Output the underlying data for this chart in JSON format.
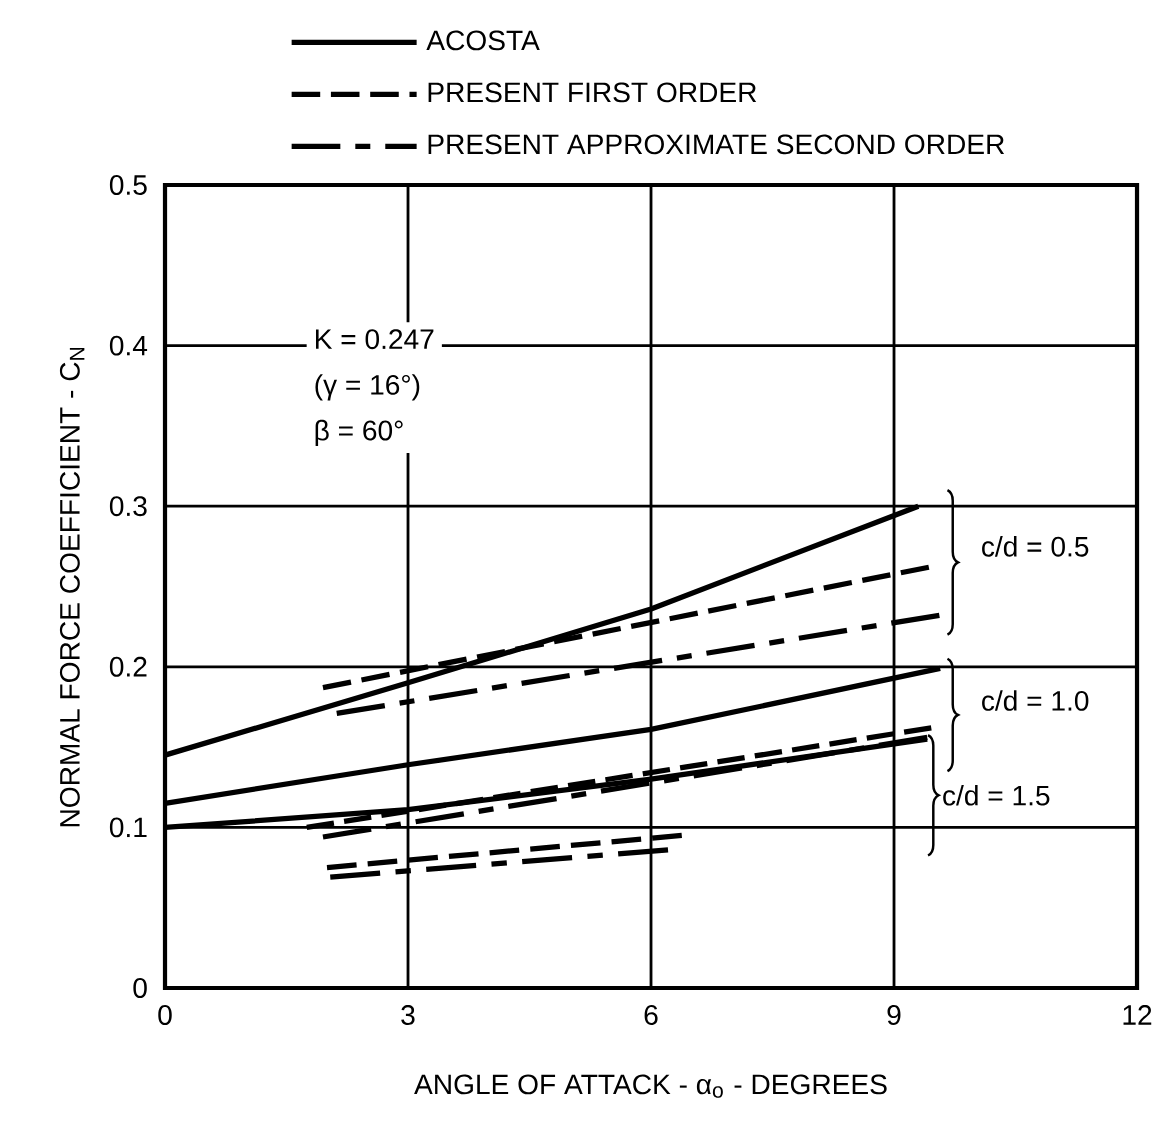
{
  "chart_data": {
    "type": "line",
    "xlabel": "ANGLE OF ATTACK - α$_{o}$ - DEGREES",
    "ylabel": "NORMAL FORCE COEFFICIENT - C$_{N}$",
    "xlim": [
      0,
      12
    ],
    "ylim": [
      0,
      0.5
    ],
    "xticks": [
      0,
      3,
      6,
      9,
      12
    ],
    "yticks": [
      0,
      0.1,
      0.2,
      0.3,
      0.4,
      0.5
    ],
    "grid": true,
    "legend": "top",
    "series": [
      {
        "name": "ACOSTA",
        "color": "#000000",
        "line_style": "solid",
        "x": [
          0,
          3,
          6,
          9.3
        ],
        "values": [
          0.145,
          0.19,
          0.236,
          0.3
        ]
      },
      {
        "name": "PRESENT FIRST ORDER",
        "color": "#000000",
        "line_style": "dashed",
        "x": [
          1.95,
          9.43
        ],
        "values": [
          0.187,
          0.262
        ]
      },
      {
        "name": "PRESENT APPROXIMATE SECOND ORDER",
        "color": "#000000",
        "line_style": "dashdot",
        "x": [
          2.12,
          9.56
        ],
        "values": [
          0.171,
          0.232
        ]
      },
      {
        "color": "#000000",
        "line_style": "solid",
        "x": [
          0,
          3,
          6,
          9.57
        ],
        "values": [
          0.115,
          0.139,
          0.161,
          0.199
        ]
      },
      {
        "color": "#000000",
        "line_style": "dashed",
        "x": [
          1.75,
          9.46
        ],
        "values": [
          0.1,
          0.162
        ]
      },
      {
        "color": "#000000",
        "line_style": "dashdot",
        "x": [
          1.95,
          9.41
        ],
        "values": [
          0.094,
          0.156
        ]
      },
      {
        "color": "#000000",
        "line_style": "solid",
        "x": [
          0,
          3,
          6,
          9.41
        ],
        "values": [
          0.1,
          0.111,
          0.13,
          0.155
        ]
      },
      {
        "color": "#000000",
        "line_style": "dashed",
        "x": [
          2.0,
          6.38
        ],
        "values": [
          0.075,
          0.095
        ]
      },
      {
        "color": "#000000",
        "line_style": "dashdot",
        "x": [
          2.04,
          6.21
        ],
        "values": [
          0.069,
          0.086
        ]
      }
    ],
    "annotations": [
      "K = 0.247",
      "(γ = 16°)",
      "β = 60°",
      "c/d = 0.5",
      "c/d = 1.0",
      "c/d = 1.5"
    ]
  }
}
